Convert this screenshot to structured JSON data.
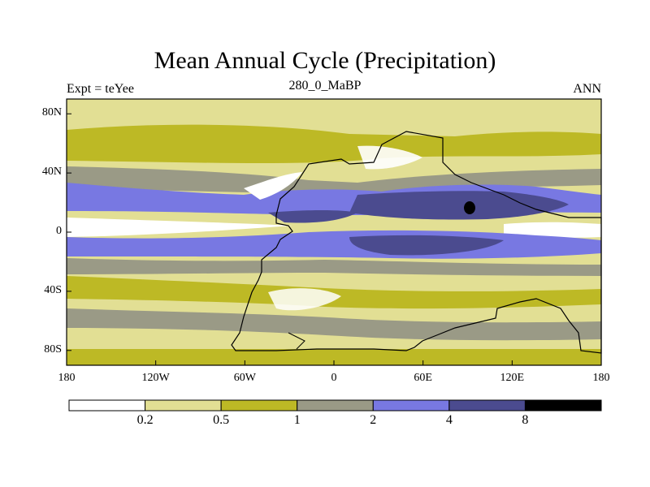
{
  "title": "Mean Annual Cycle (Precipitation)",
  "subtitle_left": "Expt = teYee",
  "subtitle_center": "280_0_MaBP",
  "subtitle_right": "ANN",
  "y_ticks": [
    {
      "label": "80N",
      "lat": 80
    },
    {
      "label": "40N",
      "lat": 40
    },
    {
      "label": "0",
      "lat": 0
    },
    {
      "label": "40S",
      "lat": -40
    },
    {
      "label": "80S",
      "lat": -80
    }
  ],
  "x_ticks": [
    {
      "label": "180",
      "lon": -180
    },
    {
      "label": "120W",
      "lon": -120
    },
    {
      "label": "60W",
      "lon": -60
    },
    {
      "label": "0",
      "lon": 0
    },
    {
      "label": "60E",
      "lon": 60
    },
    {
      "label": "120E",
      "lon": 120
    },
    {
      "label": "180",
      "lon": 180
    }
  ],
  "colorbar": {
    "colors": [
      "#ffffff",
      "#e2df94",
      "#bdb925",
      "#9a9a86",
      "#7878e2",
      "#4b4b8f",
      "#000000"
    ],
    "labels": [
      "0.2",
      "0.5",
      "1",
      "2",
      "4",
      "8"
    ]
  }
}
